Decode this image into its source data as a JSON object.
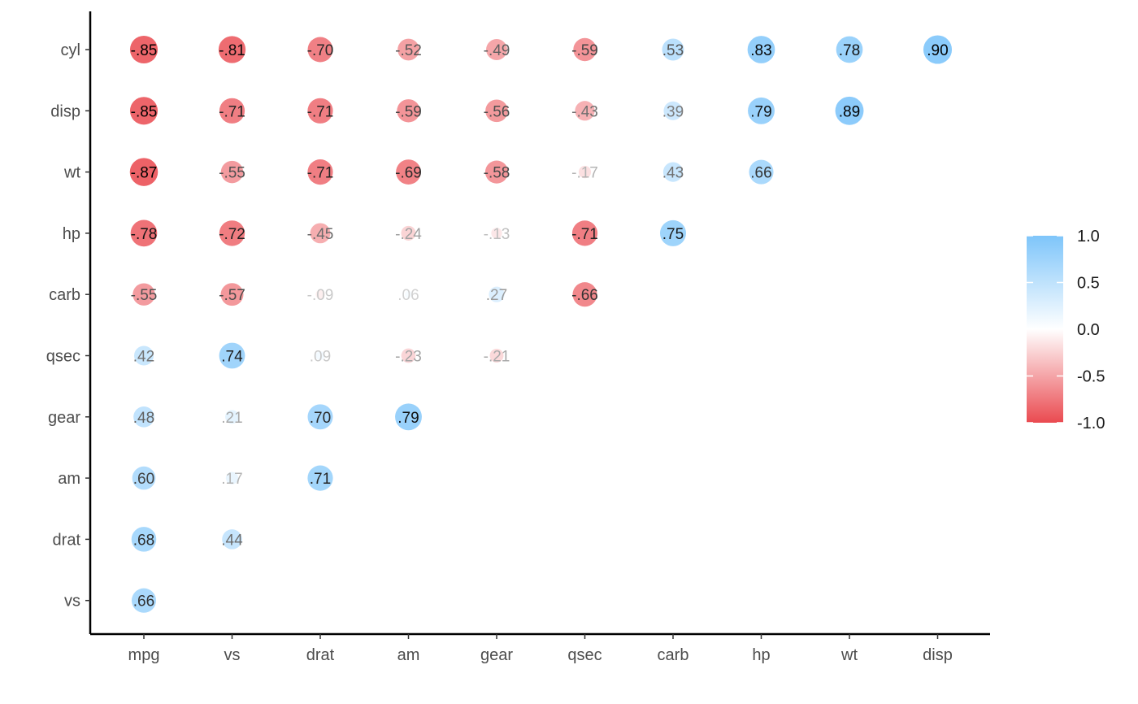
{
  "chart_data": {
    "type": "heatmap",
    "style": "lower-triangle correlation plot with circle markers",
    "x_categories": [
      "mpg",
      "vs",
      "drat",
      "am",
      "gear",
      "qsec",
      "carb",
      "hp",
      "wt",
      "disp"
    ],
    "y_categories": [
      "cyl",
      "disp",
      "wt",
      "hp",
      "carb",
      "qsec",
      "gear",
      "am",
      "drat",
      "vs"
    ],
    "cells": [
      {
        "x": "mpg",
        "y": "cyl",
        "value": -0.85,
        "label": "-.85"
      },
      {
        "x": "vs",
        "y": "cyl",
        "value": -0.81,
        "label": "-.81"
      },
      {
        "x": "drat",
        "y": "cyl",
        "value": -0.7,
        "label": "-.70"
      },
      {
        "x": "am",
        "y": "cyl",
        "value": -0.52,
        "label": "-.52"
      },
      {
        "x": "gear",
        "y": "cyl",
        "value": -0.49,
        "label": "-.49"
      },
      {
        "x": "qsec",
        "y": "cyl",
        "value": -0.59,
        "label": "-.59"
      },
      {
        "x": "carb",
        "y": "cyl",
        "value": 0.53,
        "label": ".53"
      },
      {
        "x": "hp",
        "y": "cyl",
        "value": 0.83,
        "label": ".83"
      },
      {
        "x": "wt",
        "y": "cyl",
        "value": 0.78,
        "label": ".78"
      },
      {
        "x": "disp",
        "y": "cyl",
        "value": 0.9,
        "label": ".90"
      },
      {
        "x": "mpg",
        "y": "disp",
        "value": -0.85,
        "label": "-.85"
      },
      {
        "x": "vs",
        "y": "disp",
        "value": -0.71,
        "label": "-.71"
      },
      {
        "x": "drat",
        "y": "disp",
        "value": -0.71,
        "label": "-.71"
      },
      {
        "x": "am",
        "y": "disp",
        "value": -0.59,
        "label": "-.59"
      },
      {
        "x": "gear",
        "y": "disp",
        "value": -0.56,
        "label": "-.56"
      },
      {
        "x": "qsec",
        "y": "disp",
        "value": -0.43,
        "label": "-.43"
      },
      {
        "x": "carb",
        "y": "disp",
        "value": 0.39,
        "label": ".39"
      },
      {
        "x": "hp",
        "y": "disp",
        "value": 0.79,
        "label": ".79"
      },
      {
        "x": "wt",
        "y": "disp",
        "value": 0.89,
        "label": ".89"
      },
      {
        "x": "mpg",
        "y": "wt",
        "value": -0.87,
        "label": "-.87"
      },
      {
        "x": "vs",
        "y": "wt",
        "value": -0.55,
        "label": "-.55"
      },
      {
        "x": "drat",
        "y": "wt",
        "value": -0.71,
        "label": "-.71"
      },
      {
        "x": "am",
        "y": "wt",
        "value": -0.69,
        "label": "-.69"
      },
      {
        "x": "gear",
        "y": "wt",
        "value": -0.58,
        "label": "-.58"
      },
      {
        "x": "qsec",
        "y": "wt",
        "value": -0.17,
        "label": "-.17"
      },
      {
        "x": "carb",
        "y": "wt",
        "value": 0.43,
        "label": ".43"
      },
      {
        "x": "hp",
        "y": "wt",
        "value": 0.66,
        "label": ".66"
      },
      {
        "x": "mpg",
        "y": "hp",
        "value": -0.78,
        "label": "-.78"
      },
      {
        "x": "vs",
        "y": "hp",
        "value": -0.72,
        "label": "-.72"
      },
      {
        "x": "drat",
        "y": "hp",
        "value": -0.45,
        "label": "-.45"
      },
      {
        "x": "am",
        "y": "hp",
        "value": -0.24,
        "label": "-.24"
      },
      {
        "x": "gear",
        "y": "hp",
        "value": -0.13,
        "label": "-.13"
      },
      {
        "x": "qsec",
        "y": "hp",
        "value": -0.71,
        "label": "-.71"
      },
      {
        "x": "carb",
        "y": "hp",
        "value": 0.75,
        "label": ".75"
      },
      {
        "x": "mpg",
        "y": "carb",
        "value": -0.55,
        "label": "-.55"
      },
      {
        "x": "vs",
        "y": "carb",
        "value": -0.57,
        "label": "-.57"
      },
      {
        "x": "drat",
        "y": "carb",
        "value": -0.09,
        "label": "-.09"
      },
      {
        "x": "am",
        "y": "carb",
        "value": 0.06,
        "label": ".06"
      },
      {
        "x": "gear",
        "y": "carb",
        "value": 0.27,
        "label": ".27"
      },
      {
        "x": "qsec",
        "y": "carb",
        "value": -0.66,
        "label": "-.66"
      },
      {
        "x": "mpg",
        "y": "qsec",
        "value": 0.42,
        "label": ".42"
      },
      {
        "x": "vs",
        "y": "qsec",
        "value": 0.74,
        "label": ".74"
      },
      {
        "x": "drat",
        "y": "qsec",
        "value": 0.09,
        "label": ".09"
      },
      {
        "x": "am",
        "y": "qsec",
        "value": -0.23,
        "label": "-.23"
      },
      {
        "x": "gear",
        "y": "qsec",
        "value": -0.21,
        "label": "-.21"
      },
      {
        "x": "mpg",
        "y": "gear",
        "value": 0.48,
        "label": ".48"
      },
      {
        "x": "vs",
        "y": "gear",
        "value": 0.21,
        "label": ".21"
      },
      {
        "x": "drat",
        "y": "gear",
        "value": 0.7,
        "label": ".70"
      },
      {
        "x": "am",
        "y": "gear",
        "value": 0.79,
        "label": ".79"
      },
      {
        "x": "mpg",
        "y": "am",
        "value": 0.6,
        "label": ".60"
      },
      {
        "x": "vs",
        "y": "am",
        "value": 0.17,
        "label": ".17"
      },
      {
        "x": "drat",
        "y": "am",
        "value": 0.71,
        "label": ".71"
      },
      {
        "x": "mpg",
        "y": "drat",
        "value": 0.68,
        "label": ".68"
      },
      {
        "x": "vs",
        "y": "drat",
        "value": 0.44,
        "label": ".44"
      },
      {
        "x": "mpg",
        "y": "vs",
        "value": 0.66,
        "label": ".66"
      }
    ],
    "legend": {
      "placement": "right",
      "range": [
        -1.0,
        1.0
      ],
      "ticks": [
        {
          "value": 1.0,
          "label": "1.0"
        },
        {
          "value": 0.5,
          "label": "0.5"
        },
        {
          "value": 0.0,
          "label": "0.0"
        },
        {
          "value": -0.5,
          "label": "-0.5"
        },
        {
          "value": -1.0,
          "label": "-1.0"
        }
      ]
    },
    "colors": {
      "positive": "#7ec5fa",
      "zero": "#ffffff",
      "negative": "#ea4a50"
    },
    "grid": false,
    "title": "",
    "xlabel": "",
    "ylabel": ""
  }
}
